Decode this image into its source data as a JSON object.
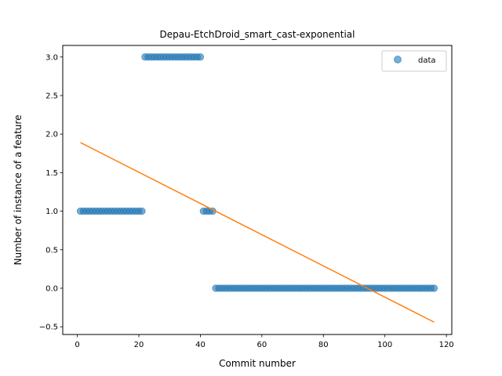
{
  "chart_data": {
    "type": "scatter",
    "title": "Depau-EtchDroid_smart_cast-exponential",
    "xlabel": "Commit number",
    "ylabel": "Number of instance of a feature",
    "xlim": [
      -4.75,
      121.75
    ],
    "ylim": [
      -0.6,
      3.15
    ],
    "xticks": [
      0,
      20,
      40,
      60,
      80,
      100,
      120
    ],
    "yticks": [
      -0.5,
      0.0,
      0.5,
      1.0,
      1.5,
      2.0,
      2.5,
      3.0
    ],
    "xtick_labels": [
      "0",
      "20",
      "40",
      "60",
      "80",
      "100",
      "120"
    ],
    "ytick_labels": [
      "−0.5",
      "0.0",
      "0.5",
      "1.0",
      "1.5",
      "2.0",
      "2.5",
      "3.0"
    ],
    "grid": false,
    "legend": {
      "position": "top-right",
      "entries": [
        "data"
      ]
    },
    "colors": {
      "points": "#1f77b4",
      "fit": "#ff7f0e"
    },
    "series": [
      {
        "name": "data",
        "kind": "scatter",
        "segments": [
          {
            "x_start": 1,
            "x_end": 21,
            "y": 1
          },
          {
            "x_start": 22,
            "x_end": 40,
            "y": 3
          },
          {
            "x_start": 41,
            "x_end": 44,
            "y": 1
          },
          {
            "x_start": 45,
            "x_end": 116,
            "y": 0
          }
        ]
      },
      {
        "kind": "line",
        "x": [
          1,
          116
        ],
        "y": [
          1.89,
          -0.44
        ]
      }
    ]
  }
}
